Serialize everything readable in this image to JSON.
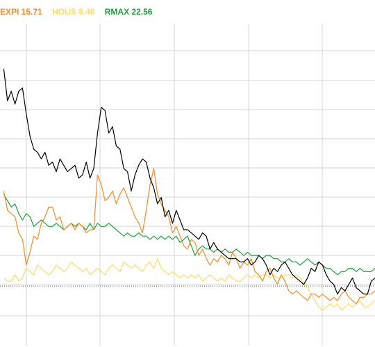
{
  "legend": [
    {
      "label": "EXPI 15.71",
      "color": "#f28c28"
    },
    {
      "label": "HOUS 8.40",
      "color": "#ffd966"
    },
    {
      "label": "RMAX 22.56",
      "color": "#1f9e3a"
    }
  ],
  "chart_data": {
    "type": "line",
    "title": "",
    "xlabel": "",
    "ylabel": "",
    "grid": true,
    "legend_position": "top-left",
    "xlim": [
      0,
      100
    ],
    "ylim": [
      0,
      100
    ],
    "reference_line": {
      "y": 18.5,
      "style": "dotted",
      "color": "#555555"
    },
    "series": [
      {
        "color": "#000000",
        "x": [
          1,
          2,
          3,
          4,
          5,
          6,
          7,
          8,
          9,
          10,
          11,
          12,
          13,
          14,
          15,
          16,
          17,
          18,
          19,
          20,
          21,
          22,
          23,
          24,
          25,
          26,
          27,
          28,
          29,
          30,
          31,
          32,
          33,
          34,
          35,
          36,
          37,
          38,
          39,
          40,
          41,
          42,
          43,
          44,
          45,
          46,
          47,
          48,
          49,
          50,
          51,
          52,
          53,
          54,
          55,
          56,
          57,
          58,
          59,
          60,
          61,
          62,
          63,
          64,
          65,
          66,
          67,
          68,
          69,
          70,
          71,
          72,
          73,
          74,
          75,
          76,
          77,
          78,
          79,
          80,
          81,
          82,
          83,
          84,
          85,
          86,
          87,
          88,
          89,
          90,
          91,
          92,
          93,
          94,
          95,
          96,
          97,
          98,
          99,
          100
        ],
        "values": [
          86,
          76,
          79,
          75,
          79,
          80,
          72,
          65,
          61,
          60,
          58,
          60,
          56,
          57,
          54,
          58,
          56,
          54,
          55,
          56,
          52,
          53,
          57,
          52,
          55,
          66,
          74,
          73,
          66,
          68,
          62,
          61,
          55,
          54,
          48,
          53,
          56,
          58,
          57,
          52,
          49,
          44,
          46,
          40,
          42,
          38,
          42,
          39,
          36,
          36,
          35,
          34,
          33,
          35,
          34,
          30,
          32,
          30,
          29,
          28,
          27,
          27,
          27,
          26,
          26,
          27,
          25,
          26,
          28,
          27,
          25,
          22,
          24,
          23,
          25,
          26,
          24,
          22,
          21,
          20,
          19,
          21,
          24,
          23,
          26,
          25,
          22,
          20,
          19,
          16,
          18,
          17,
          19,
          21,
          18,
          17,
          16,
          16,
          20,
          21
        ]
      },
      {
        "name": "EXPI 15.71",
        "color": "#f28c28",
        "x": [
          1,
          2,
          3,
          4,
          5,
          6,
          7,
          8,
          9,
          10,
          11,
          12,
          13,
          14,
          15,
          16,
          17,
          18,
          19,
          20,
          21,
          22,
          23,
          24,
          25,
          26,
          27,
          28,
          29,
          30,
          31,
          32,
          33,
          34,
          35,
          36,
          37,
          38,
          39,
          40,
          41,
          42,
          43,
          44,
          45,
          46,
          47,
          48,
          49,
          50,
          51,
          52,
          53,
          54,
          55,
          56,
          57,
          58,
          59,
          60,
          61,
          62,
          63,
          64,
          65,
          66,
          67,
          68,
          69,
          70,
          71,
          72,
          73,
          74,
          75,
          76,
          77,
          78,
          79,
          80,
          81,
          82,
          83,
          84,
          85,
          86,
          87,
          88,
          89,
          90,
          91,
          92,
          93,
          94,
          95,
          96,
          97,
          98,
          99,
          100
        ],
        "values": [
          48,
          42,
          41,
          40,
          35,
          33,
          25,
          29,
          34,
          33,
          38,
          40,
          43,
          43,
          39,
          40,
          36,
          37,
          38,
          36,
          38,
          37,
          35,
          36,
          36,
          53,
          50,
          45,
          46,
          48,
          44,
          47,
          49,
          46,
          43,
          40,
          38,
          35,
          42,
          50,
          55,
          47,
          44,
          42,
          40,
          35,
          37,
          34,
          31,
          30,
          33,
          32,
          28,
          30,
          27,
          25,
          27,
          26,
          28,
          27,
          25,
          29,
          27,
          24,
          26,
          25,
          27,
          23,
          22,
          20,
          23,
          24,
          21,
          19,
          22,
          20,
          17,
          16,
          17,
          16,
          15,
          14,
          16,
          16,
          15,
          16,
          15,
          14,
          15,
          14,
          16,
          17,
          15,
          14,
          13,
          15,
          15,
          16,
          16,
          17
        ]
      },
      {
        "name": "HOUS 8.40",
        "color": "#ffd966",
        "x": [
          1,
          2,
          3,
          4,
          5,
          6,
          7,
          8,
          9,
          10,
          11,
          12,
          13,
          14,
          15,
          16,
          17,
          18,
          19,
          20,
          21,
          22,
          23,
          24,
          25,
          26,
          27,
          28,
          29,
          30,
          31,
          32,
          33,
          34,
          35,
          36,
          37,
          38,
          39,
          40,
          41,
          42,
          43,
          44,
          45,
          46,
          47,
          48,
          49,
          50,
          51,
          52,
          53,
          54,
          55,
          56,
          57,
          58,
          59,
          60,
          61,
          62,
          63,
          64,
          65,
          66,
          67,
          68,
          69,
          70,
          71,
          72,
          73,
          74,
          75,
          76,
          77,
          78,
          79,
          80,
          81,
          82,
          83,
          84,
          85,
          86,
          87,
          88,
          89,
          90,
          91,
          92,
          93,
          94,
          95,
          96,
          97,
          98,
          99,
          100
        ],
        "values": [
          21,
          20,
          20,
          22,
          20,
          21,
          24,
          23,
          22,
          25,
          24,
          23,
          22,
          23,
          25,
          24,
          23,
          24,
          26,
          25,
          24,
          23,
          24,
          22,
          23,
          24,
          23,
          22,
          24,
          25,
          24,
          23,
          26,
          25,
          24,
          25,
          24,
          23,
          25,
          26,
          24,
          27,
          24,
          23,
          22,
          23,
          22,
          21,
          22,
          21,
          22,
          21,
          22,
          20,
          21,
          22,
          21,
          20,
          21,
          20,
          22,
          21,
          20,
          20,
          21,
          22,
          21,
          22,
          21,
          22,
          22,
          21,
          22,
          21,
          21,
          22,
          22,
          21,
          22,
          21,
          19,
          18,
          16,
          14,
          12,
          11,
          12,
          13,
          12,
          13,
          11,
          12,
          13,
          12,
          13,
          14,
          12,
          12,
          13,
          14
        ]
      },
      {
        "name": "RMAX 22.56",
        "color": "#1f9e3a",
        "x": [
          1,
          2,
          3,
          4,
          5,
          6,
          7,
          8,
          9,
          10,
          11,
          12,
          13,
          14,
          15,
          16,
          17,
          18,
          19,
          20,
          21,
          22,
          23,
          24,
          25,
          26,
          27,
          28,
          29,
          30,
          31,
          32,
          33,
          34,
          35,
          36,
          37,
          38,
          39,
          40,
          41,
          42,
          43,
          44,
          45,
          46,
          47,
          48,
          49,
          50,
          51,
          52,
          53,
          54,
          55,
          56,
          57,
          58,
          59,
          60,
          61,
          62,
          63,
          64,
          65,
          66,
          67,
          68,
          69,
          70,
          71,
          72,
          73,
          74,
          75,
          76,
          77,
          78,
          79,
          80,
          81,
          82,
          83,
          84,
          85,
          86,
          87,
          88,
          89,
          90,
          91,
          92,
          93,
          94,
          95,
          96,
          97,
          98,
          99,
          100
        ],
        "values": [
          47,
          45,
          43,
          44,
          41,
          39,
          41,
          40,
          37,
          38,
          39,
          38,
          37,
          37,
          38,
          37,
          36,
          37,
          38,
          37,
          38,
          37,
          36,
          38,
          36,
          38,
          37,
          37,
          38,
          37,
          36,
          35,
          34,
          35,
          34,
          34,
          35,
          34,
          34,
          33,
          34,
          33,
          34,
          33,
          34,
          33,
          34,
          32,
          33,
          34,
          31,
          28,
          30,
          31,
          30,
          30,
          29,
          30,
          29,
          30,
          29,
          29,
          30,
          29,
          28,
          29,
          28,
          28,
          28,
          27,
          28,
          28,
          27,
          27,
          26,
          26,
          27,
          26,
          26,
          25,
          26,
          27,
          26,
          25,
          26,
          25,
          24,
          24,
          23,
          22,
          23,
          23,
          24,
          24,
          23,
          24,
          23,
          23,
          23,
          24
        ]
      }
    ]
  }
}
